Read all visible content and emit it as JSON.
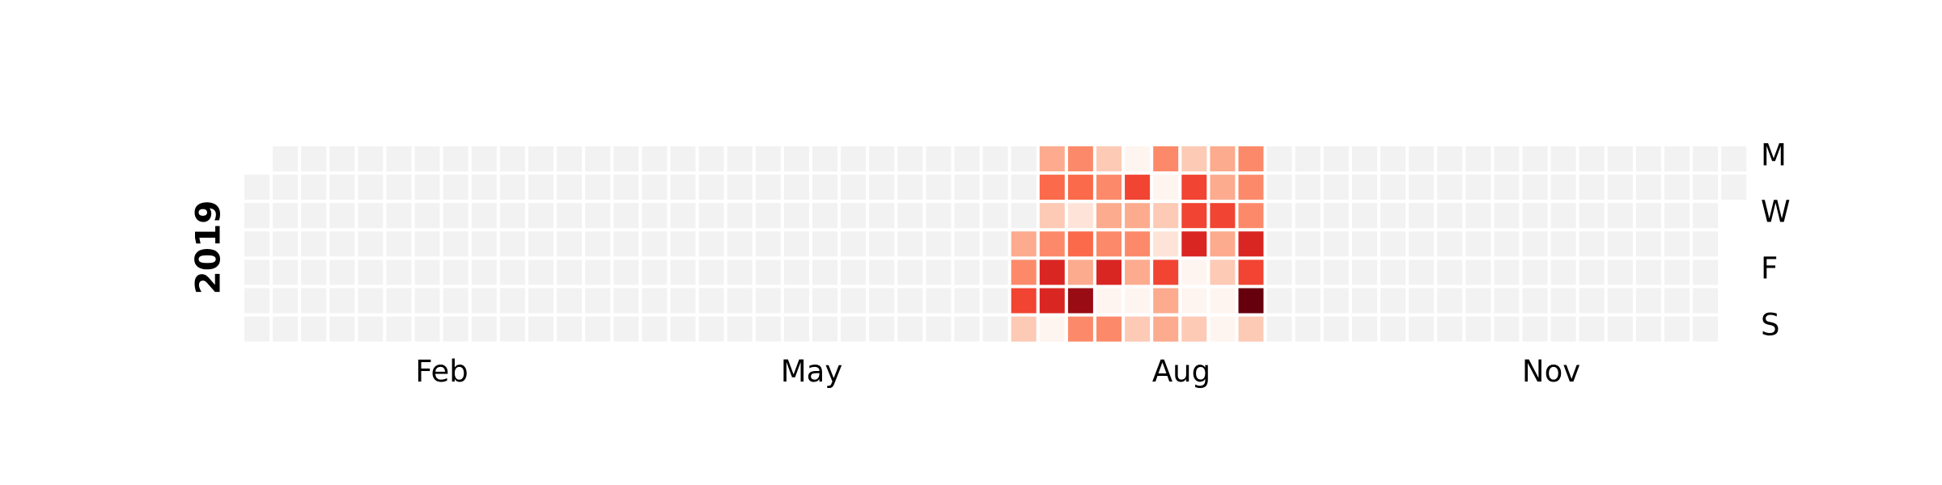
{
  "chart_data": {
    "type": "heatmap",
    "subtype": "calendar",
    "year": "2019",
    "month_labels": [
      "Feb",
      "May",
      "Aug",
      "Nov"
    ],
    "weekday_labels": [
      "M",
      "W",
      "F",
      "S"
    ],
    "colormap": "Reds",
    "empty_color": "#f2f2f2",
    "grid": false,
    "active_weeks": [
      {
        "week_start": "2019-07-08",
        "days": [
          null,
          null,
          null,
          3,
          4,
          6,
          2
        ]
      },
      {
        "week_start": "2019-07-15",
        "days": [
          3,
          5,
          2,
          4,
          7,
          7,
          0
        ]
      },
      {
        "week_start": "2019-07-22",
        "days": [
          4,
          5,
          1,
          5,
          3,
          9,
          4
        ]
      },
      {
        "week_start": "2019-07-29",
        "days": [
          2,
          4,
          3,
          4,
          7,
          0,
          4
        ]
      },
      {
        "week_start": "2019-08-05",
        "days": [
          0,
          6,
          3,
          4,
          3,
          0,
          2
        ]
      },
      {
        "week_start": "2019-08-12",
        "days": [
          4,
          0,
          2,
          1,
          6,
          3,
          3
        ]
      },
      {
        "week_start": "2019-08-19",
        "days": [
          2,
          6,
          6,
          7,
          0,
          0,
          2
        ]
      },
      {
        "week_start": "2019-08-26",
        "days": [
          3,
          3,
          6,
          3,
          2,
          0,
          0
        ]
      },
      {
        "week_start": "2019-09-02",
        "days": [
          4,
          4,
          4,
          7,
          6,
          10,
          2
        ]
      }
    ]
  }
}
